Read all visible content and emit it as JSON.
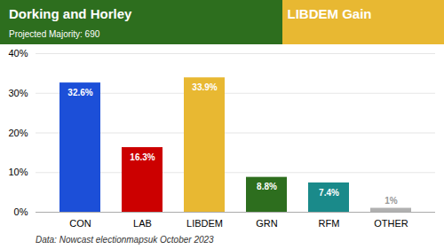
{
  "chart_data": {
    "type": "bar",
    "title": "Dorking and Horley",
    "annotations": [
      "LIBDEM Gain"
    ],
    "subtitle": "Projected Majority: 690",
    "caption": "Data: Nowcast electionmapsuk October 2023",
    "categories": [
      "CON",
      "LAB",
      "LIBDEM",
      "GRN",
      "RFM",
      "OTHER"
    ],
    "values": [
      32.6,
      16.3,
      33.9,
      8.8,
      7.4,
      1.0
    ],
    "value_labels": [
      "32.6%",
      "16.3%",
      "33.9%",
      "8.8%",
      "7.4%",
      "1%"
    ],
    "colors": [
      "#1c4fd8",
      "#cc0000",
      "#e8b832",
      "#2d6e1e",
      "#1a8a8a",
      "#b0b0b0"
    ],
    "ylim": [
      0,
      40
    ],
    "yticks": [
      {
        "value": 0,
        "label": "0%"
      },
      {
        "value": 10,
        "label": "10%"
      },
      {
        "value": 20,
        "label": "20%"
      },
      {
        "value": 30,
        "label": "30%"
      },
      {
        "value": 40,
        "label": "40%"
      }
    ],
    "grid": true,
    "data_labels": true
  }
}
